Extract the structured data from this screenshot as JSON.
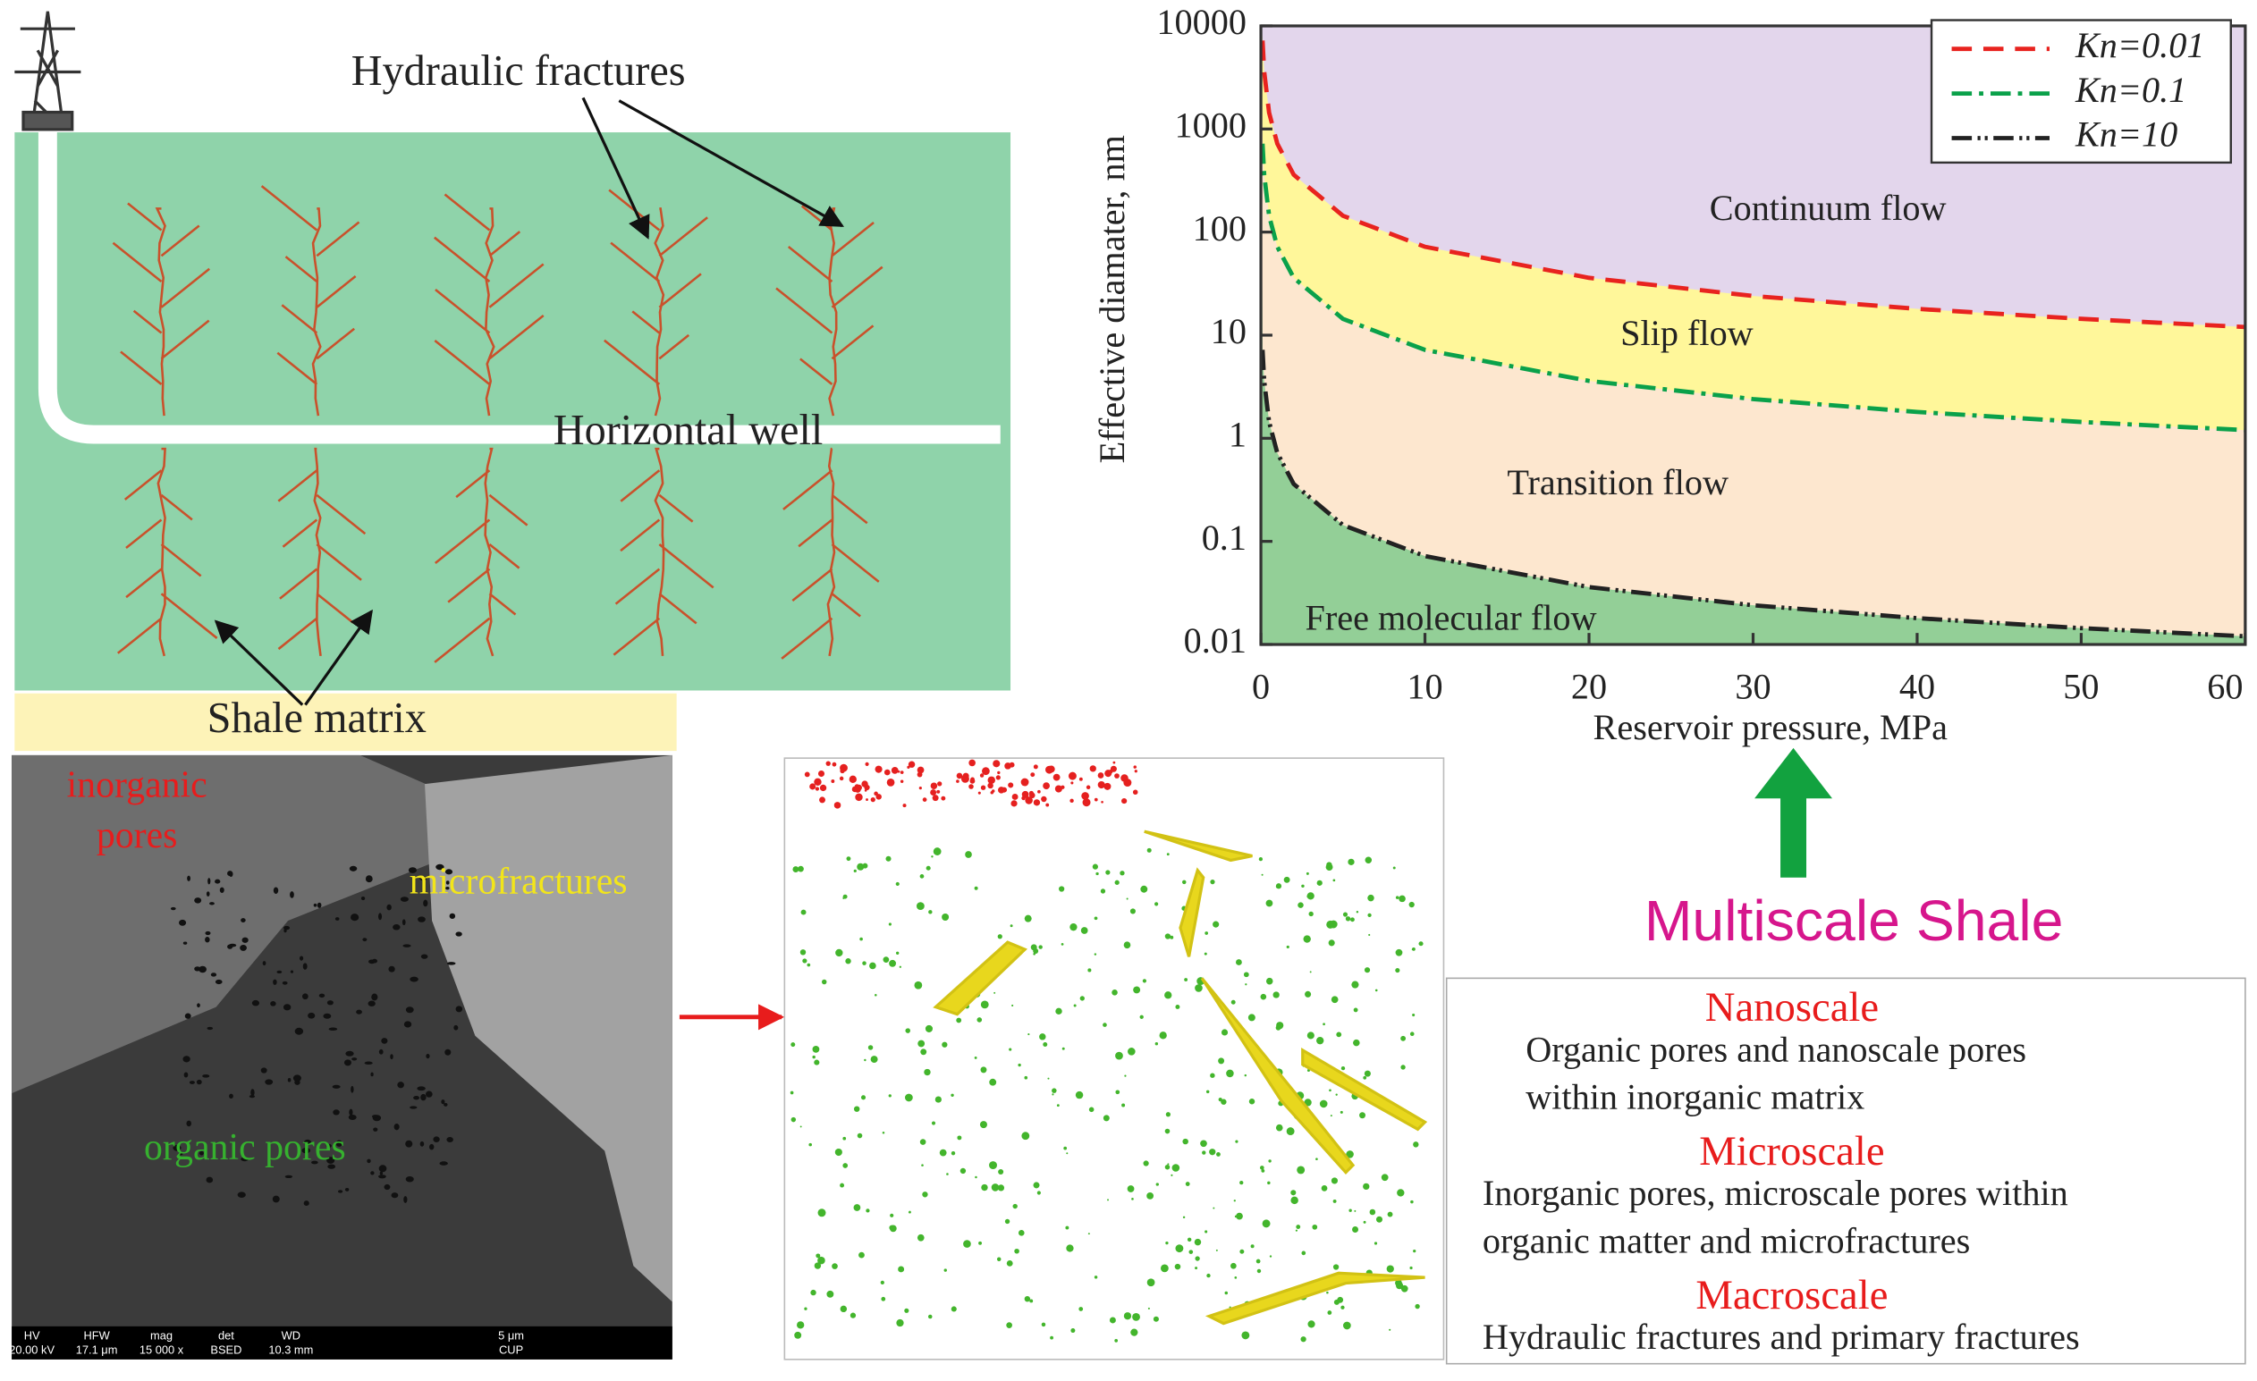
{
  "diagram": {
    "hydraulic_fractures": "Hydraulic fractures",
    "horizontal_well": "Horizontal well",
    "shale_matrix": "Shale matrix",
    "sem_labels": {
      "inorganic_pores": [
        "inorganic",
        "pores"
      ],
      "microfractures": "microfractures",
      "organic_pores": "organic pores"
    },
    "sem_bar": {
      "headers": [
        "HV",
        "HFW",
        "mag",
        "det",
        "WD"
      ],
      "values": [
        "20.00 kV",
        "17.1 μm",
        "15 000 x",
        "BSED",
        "10.3 mm"
      ],
      "scale": "5 μm",
      "lab": "CUP"
    },
    "multiscale": "Multiscale Shale",
    "scales": [
      {
        "title": "Nanoscale",
        "lines": [
          "Organic pores and nanoscale pores",
          "within inorganic matrix"
        ]
      },
      {
        "title": "Microscale",
        "lines": [
          "Inorganic pores, microscale pores within",
          "organic matter and  microfractures"
        ]
      },
      {
        "title": "Macroscale",
        "lines": [
          "Hydraulic fractures and  primary fractures"
        ]
      }
    ]
  },
  "chart_data": {
    "type": "line",
    "xlabel": "Reservoir  pressure, MPa",
    "ylabel": "Effective diamater, nm",
    "x": [
      0.1,
      0.2,
      0.5,
      1,
      2,
      5,
      10,
      20,
      30,
      40,
      50,
      60
    ],
    "series": [
      {
        "name": "Kn=0.01",
        "color": "#e8231f",
        "values": [
          7200,
          3600,
          1440,
          720,
          360,
          144,
          72,
          36,
          24,
          18,
          14.4,
          12
        ]
      },
      {
        "name": "Kn=0.1",
        "color": "#0aa14a",
        "values": [
          720,
          360,
          144,
          72,
          36,
          14.4,
          7.2,
          3.6,
          2.4,
          1.8,
          1.44,
          1.2
        ]
      },
      {
        "name": "Kn=10",
        "color": "#222222",
        "values": [
          7.2,
          3.6,
          1.44,
          0.72,
          0.36,
          0.144,
          0.072,
          0.036,
          0.024,
          0.018,
          0.0144,
          0.012
        ]
      }
    ],
    "regions": [
      "Continuum flow",
      "Slip flow",
      "Transition flow",
      "Free molecular flow"
    ],
    "region_colors": [
      "#e3d6ec",
      "#fff79a",
      "#fde7cf",
      "#93cf97"
    ],
    "xlim": [
      0,
      60
    ],
    "xticks": [
      0,
      10,
      20,
      30,
      40,
      50,
      60
    ],
    "ylim": [
      0.01,
      10000
    ],
    "yticks": [
      0.01,
      0.1,
      1,
      10,
      100,
      1000,
      10000
    ],
    "log_y": true,
    "legend": "upper right"
  }
}
